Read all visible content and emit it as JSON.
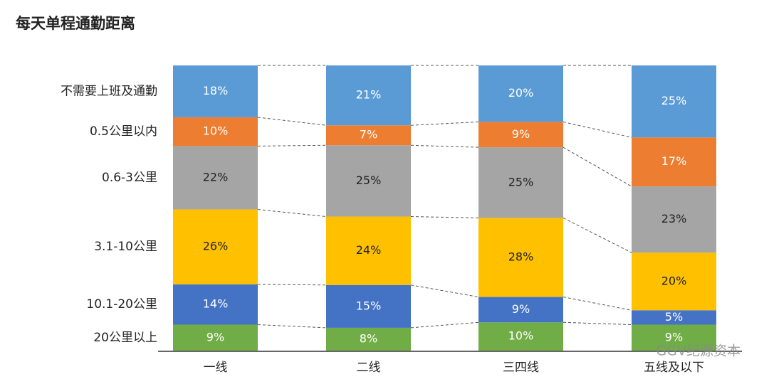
{
  "chart_data": {
    "type": "stacked_bar_percent",
    "title": "每天单程通勤距离",
    "categories": [
      "一线",
      "二线",
      "三四线",
      "五线及以下"
    ],
    "series": [
      {
        "name": "20公里以上",
        "color": "#70ad47",
        "values": [
          9,
          8,
          10,
          9
        ],
        "value_labels": [
          "9%",
          "8%",
          "10%",
          "9%"
        ]
      },
      {
        "name": "10.1-20公里",
        "color": "#4472c4",
        "values": [
          14,
          15,
          9,
          5
        ],
        "value_labels": [
          "14%",
          "15%",
          "9%",
          "5%"
        ]
      },
      {
        "name": "3.1-10公里",
        "color": "#ffc000",
        "values": [
          26,
          24,
          28,
          20
        ],
        "value_labels": [
          "26%",
          "24%",
          "28%",
          "20%"
        ]
      },
      {
        "name": "0.6-3公里",
        "color": "#a5a5a5",
        "values": [
          22,
          25,
          25,
          23
        ],
        "value_labels": [
          "22%",
          "25%",
          "25%",
          "23%"
        ]
      },
      {
        "name": "0.5公里以内",
        "color": "#ed7d31",
        "values": [
          10,
          7,
          9,
          17
        ],
        "value_labels": [
          "10%",
          "7%",
          "9%",
          "17%"
        ]
      },
      {
        "name": "不需要上班及通勤",
        "color": "#5b9bd5",
        "values": [
          18,
          21,
          20,
          25
        ],
        "value_labels": [
          "18%",
          "21%",
          "20%",
          "25%"
        ]
      }
    ],
    "watermark": "GGV纪源资本"
  }
}
